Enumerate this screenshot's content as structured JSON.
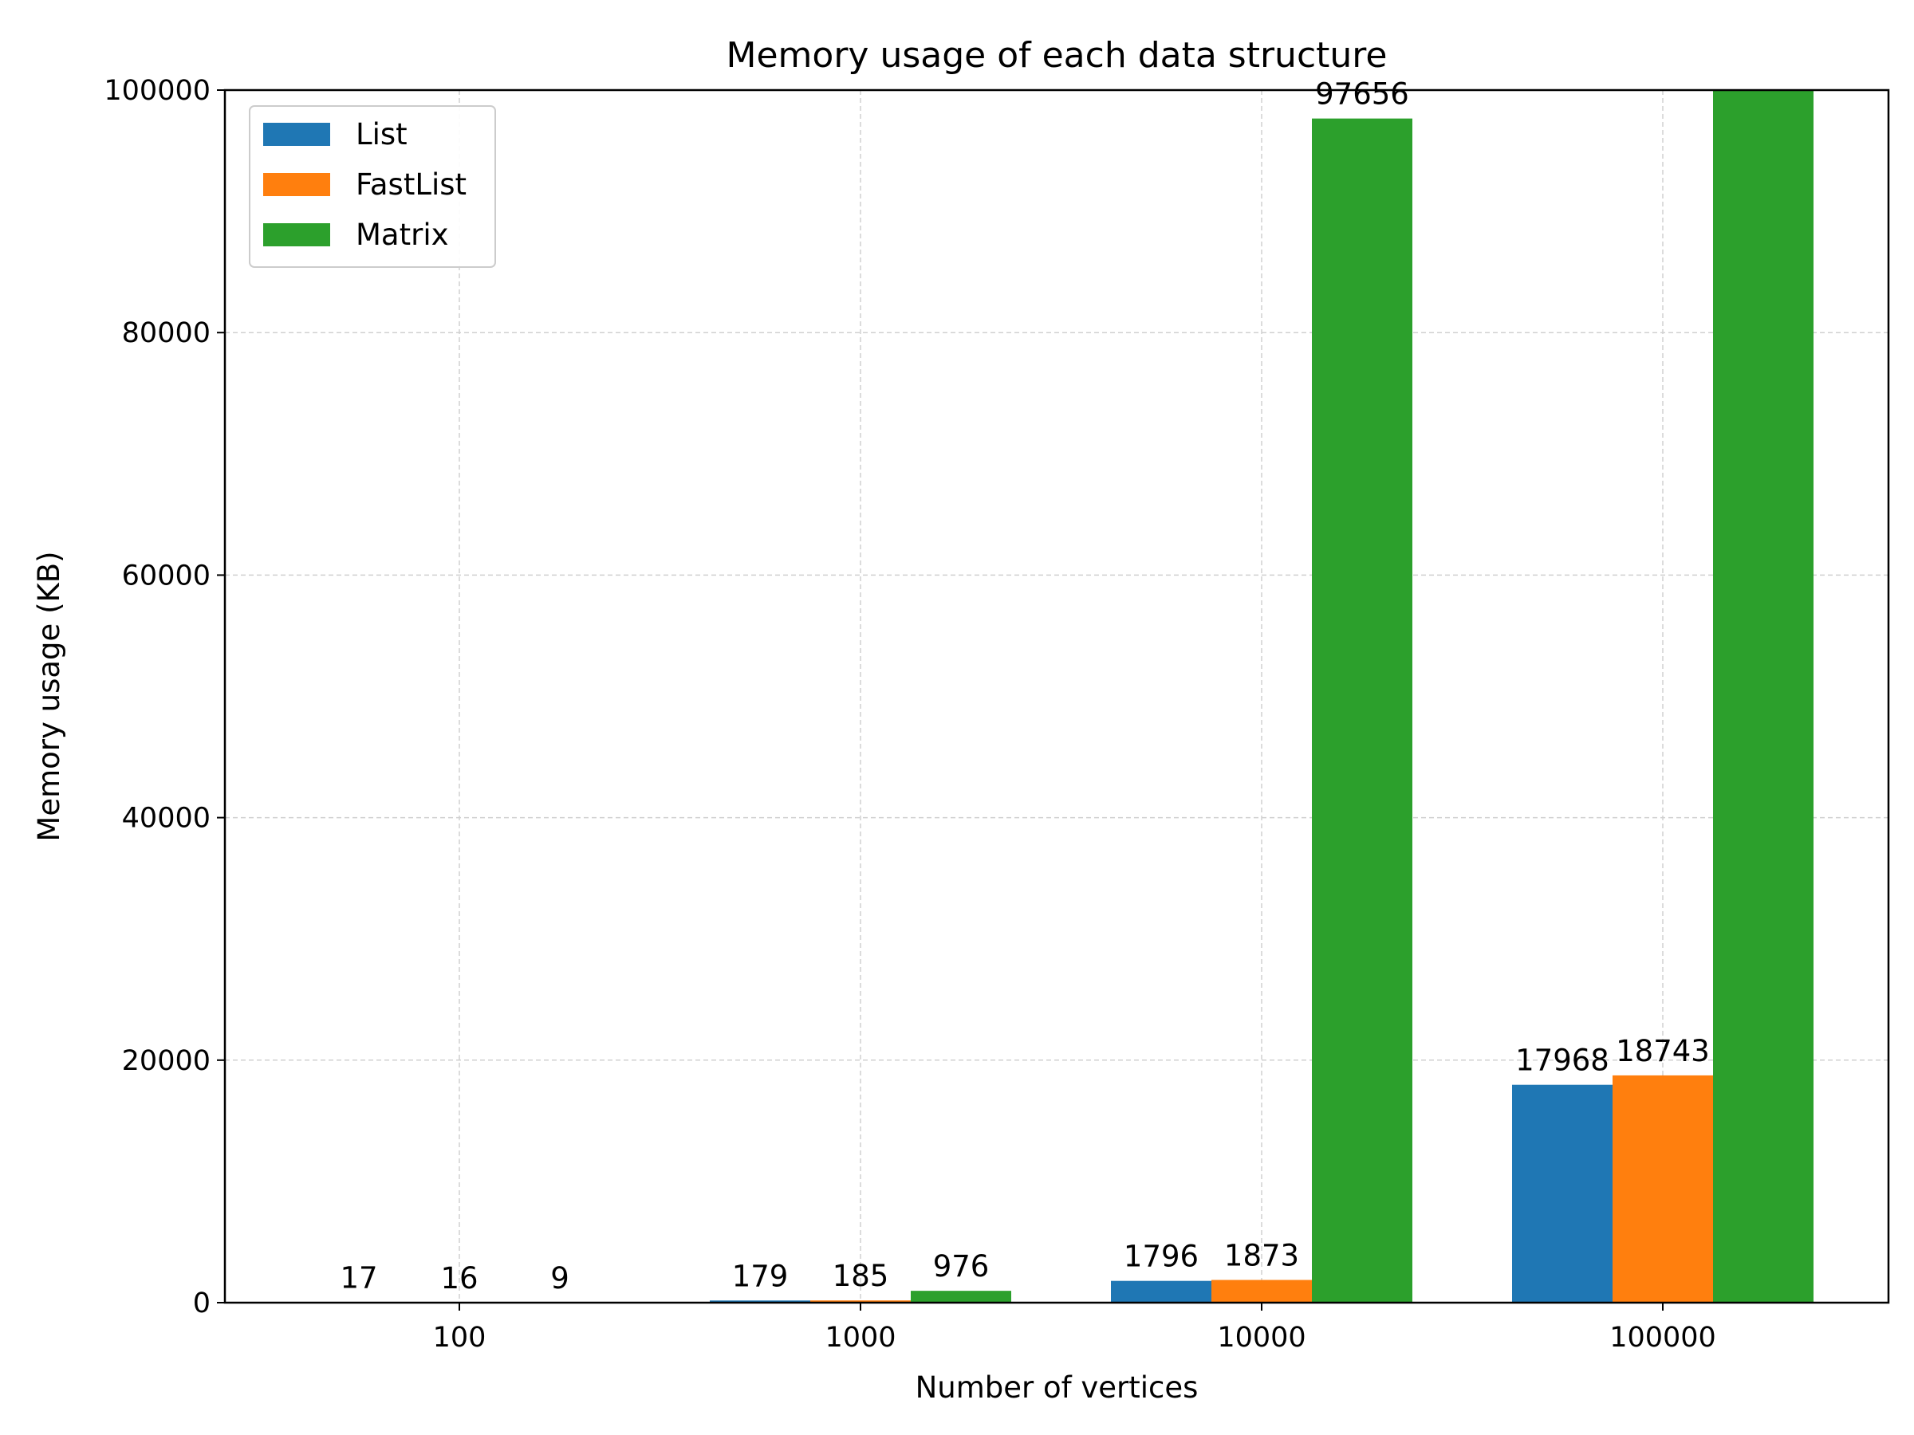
{
  "chart_data": {
    "type": "bar",
    "title": "Memory usage of each data structure",
    "xlabel": "Number of vertices",
    "ylabel": "Memory usage (KB)",
    "categories": [
      "100",
      "1000",
      "10000",
      "100000"
    ],
    "ylim": [
      0,
      100000
    ],
    "yticks": [
      0,
      20000,
      40000,
      60000,
      80000,
      100000
    ],
    "yticks_labels": [
      "0",
      "20000",
      "40000",
      "60000",
      "80000",
      "100000"
    ],
    "grid": true,
    "legend_position": "upper left",
    "series": [
      {
        "name": "List",
        "color": "#1f77b4",
        "values": [
          17,
          179,
          1796,
          17968
        ],
        "labels": [
          "17",
          "179",
          "1796",
          "17968"
        ]
      },
      {
        "name": "FastList",
        "color": "#ff7f0e",
        "values": [
          16,
          185,
          1873,
          18743
        ],
        "labels": [
          "16",
          "185",
          "1873",
          "18743"
        ]
      },
      {
        "name": "Matrix",
        "color": "#2ca02c",
        "values": [
          9,
          976,
          97656,
          100000
        ],
        "labels": [
          "9",
          "976",
          "97656",
          ""
        ]
      }
    ]
  }
}
